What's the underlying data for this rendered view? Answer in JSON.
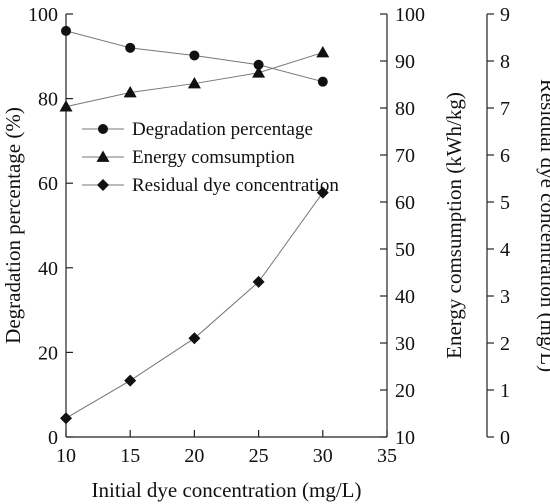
{
  "chart_data": {
    "type": "line",
    "x": [
      10,
      15,
      20,
      25,
      30
    ],
    "xlabel": "Initial dye concentration (mg/L)",
    "xlim": [
      10,
      35
    ],
    "xticks": [
      10,
      15,
      20,
      25,
      30,
      35
    ],
    "axes": {
      "left": {
        "label": "Degradation percentage (%)",
        "range": [
          0,
          100
        ],
        "ticks": [
          0,
          20,
          40,
          60,
          80,
          100
        ]
      },
      "right1": {
        "label": "Energy comsumption (kWh/kg)",
        "range": [
          10,
          100
        ],
        "ticks": [
          10,
          20,
          30,
          40,
          50,
          60,
          70,
          80,
          90,
          100
        ]
      },
      "right2": {
        "label": "Residual dye concentration (mg/L)",
        "range": [
          0,
          9
        ],
        "ticks": [
          0,
          1,
          2,
          3,
          4,
          5,
          6,
          7,
          8,
          9
        ]
      }
    },
    "series": [
      {
        "name": "Degradation percentage",
        "axis": "left",
        "marker": "circle",
        "values": [
          96,
          92,
          90.2,
          88,
          84
        ]
      },
      {
        "name": "Energy comsumption",
        "axis": "right1",
        "marker": "triangle",
        "values": [
          80.3,
          83.3,
          85.2,
          87.5,
          91.8
        ]
      },
      {
        "name": "Residual dye concentration",
        "axis": "right2",
        "marker": "diamond",
        "values": [
          0.4,
          1.2,
          2.1,
          3.3,
          5.2
        ]
      }
    ],
    "legend": "upper-left",
    "grid": false,
    "colors": {
      "line": "#777777",
      "marker": "#111111",
      "axis": "#222222"
    }
  }
}
